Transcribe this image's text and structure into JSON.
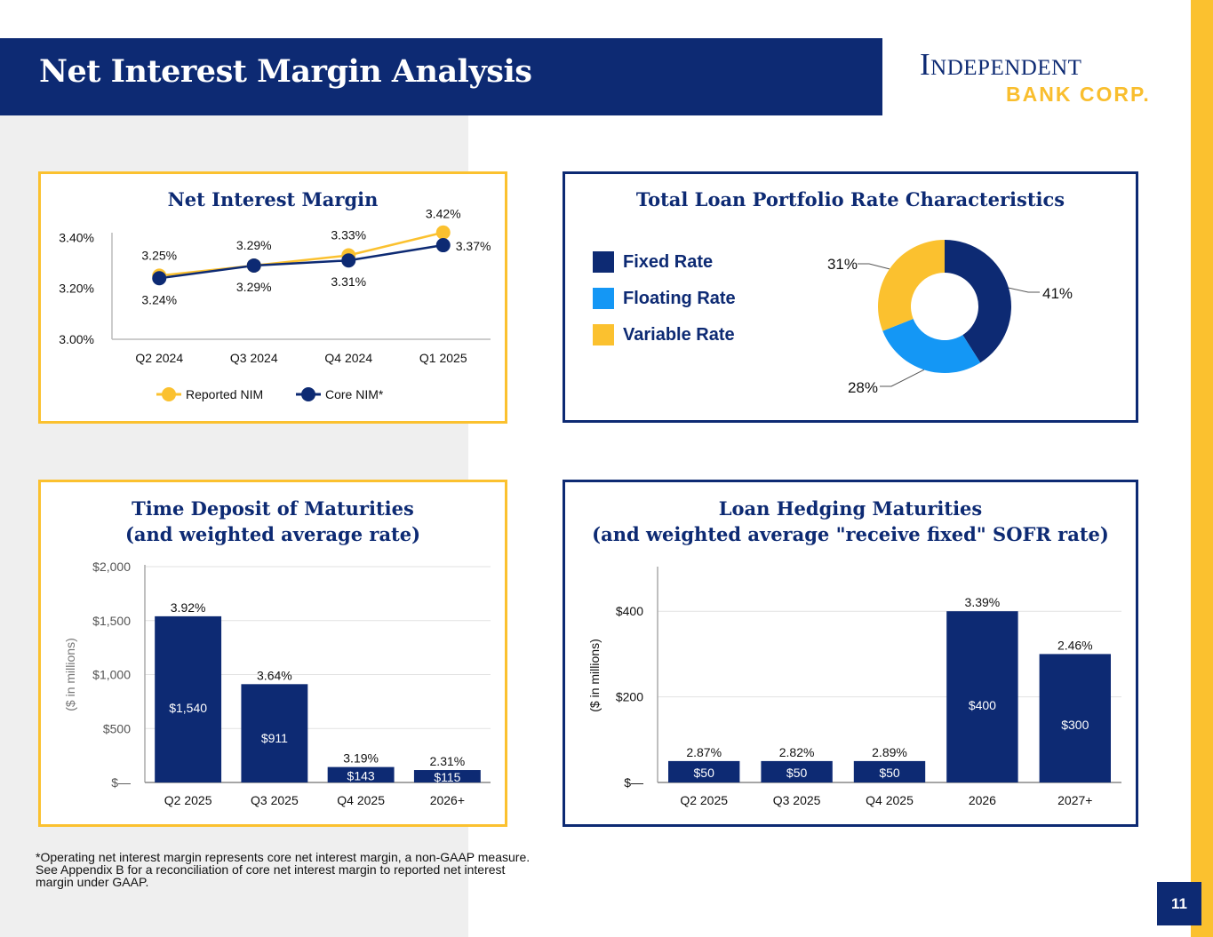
{
  "header": {
    "title": "Net Interest Margin Analysis",
    "logo_top": "Independent",
    "logo_bottom": "BANK CORP."
  },
  "colors": {
    "navy": "#0d2a73",
    "gold": "#fbc12f",
    "light_blue": "#1497f5"
  },
  "footnote": "*Operating net interest margin represents core net interest margin, a non-GAAP measure.  See Appendix B for a reconciliation of core net interest margin to reported net interest margin under GAAP.",
  "page_number": "11",
  "chart_data": [
    {
      "type": "line",
      "title": "Net Interest Margin",
      "categories": [
        "Q2 2024",
        "Q3 2024",
        "Q4 2024",
        "Q1 2025"
      ],
      "series": [
        {
          "name": "Reported NIM",
          "values": [
            3.25,
            3.29,
            3.33,
            3.42
          ],
          "labels": [
            "3.25%",
            "3.29%",
            "3.33%",
            "3.42%"
          ],
          "color": "#fbc12f"
        },
        {
          "name": "Core NIM*",
          "values": [
            3.24,
            3.29,
            3.31,
            3.37
          ],
          "labels": [
            "3.24%",
            "3.29%",
            "3.31%",
            "3.37%"
          ],
          "color": "#0d2a73"
        }
      ],
      "yticks": [
        "3.00%",
        "3.20%",
        "3.40%"
      ],
      "ytick_values": [
        3.0,
        3.2,
        3.4
      ],
      "ylim": [
        3.0,
        3.44
      ],
      "legend": "bottom",
      "grid": false
    },
    {
      "type": "pie",
      "title": "Total Loan Portfolio Rate Characteristics",
      "donut": true,
      "slices": [
        {
          "name": "Fixed Rate",
          "value": 41,
          "label": "41%",
          "color": "#0d2a73"
        },
        {
          "name": "Floating Rate",
          "value": 28,
          "label": "28%",
          "color": "#1497f5"
        },
        {
          "name": "Variable Rate",
          "value": 31,
          "label": "31%",
          "color": "#fbc12f"
        }
      ],
      "legend": "left"
    },
    {
      "type": "bar",
      "title": "Time Deposit of Maturities",
      "subtitle": "(and weighted average rate)",
      "categories": [
        "Q2 2025",
        "Q3 2025",
        "Q4 2025",
        "2026+"
      ],
      "values": [
        1540,
        911,
        143,
        115
      ],
      "value_labels": [
        "$1,540",
        "$911",
        "$143",
        "$115"
      ],
      "rate_labels": [
        "3.92%",
        "3.64%",
        "3.19%",
        "2.31%"
      ],
      "ylabel": "($ in millions)",
      "yticks": [
        "$—",
        "$500",
        "$1,000",
        "$1,500",
        "$2,000"
      ],
      "ytick_values": [
        0,
        500,
        1000,
        1500,
        2000
      ],
      "ylim": [
        0,
        2000
      ],
      "grid": true
    },
    {
      "type": "bar",
      "title": "Loan Hedging Maturities",
      "subtitle": "(and weighted average \"receive fixed\" SOFR rate)",
      "categories": [
        "Q2 2025",
        "Q3 2025",
        "Q4 2025",
        "2026",
        "2027+"
      ],
      "values": [
        50,
        50,
        50,
        400,
        300
      ],
      "value_labels": [
        "$50",
        "$50",
        "$50",
        "$400",
        "$300"
      ],
      "rate_labels": [
        "2.87%",
        "2.82%",
        "2.89%",
        "3.39%",
        "2.46%"
      ],
      "ylabel": "($ in millions)",
      "yticks": [
        "$—",
        "$200",
        "$400"
      ],
      "ytick_values": [
        0,
        200,
        400
      ],
      "ylim": [
        0,
        500
      ],
      "grid": true
    }
  ]
}
